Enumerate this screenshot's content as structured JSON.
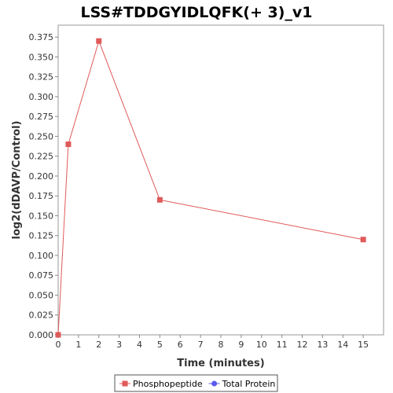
{
  "chart_data": {
    "type": "line",
    "title": "LSS#TDDGYIDLQFK(+ 3)_v1",
    "xlabel": "Time (minutes)",
    "ylabel": "log2(dDAVP/Control)",
    "xlim": [
      0,
      16
    ],
    "ylim": [
      0,
      0.39
    ],
    "x_ticks": [
      0,
      1,
      2,
      3,
      4,
      5,
      6,
      7,
      8,
      9,
      10,
      11,
      12,
      13,
      14,
      15
    ],
    "y_ticks": [
      0.0,
      0.025,
      0.05,
      0.075,
      0.1,
      0.125,
      0.15,
      0.175,
      0.2,
      0.225,
      0.25,
      0.275,
      0.3,
      0.325,
      0.35,
      0.375
    ],
    "grid": false,
    "legend_position": "bottom",
    "series": [
      {
        "name": "Phosphopeptide",
        "color": "#e05a5a",
        "marker": "square",
        "x": [
          0,
          0.5,
          2,
          5,
          15
        ],
        "values": [
          0.0,
          0.24,
          0.37,
          0.17,
          0.12
        ]
      },
      {
        "name": "Total Protein",
        "color": "#5a5aee",
        "marker": "circle",
        "x": [],
        "values": []
      }
    ]
  }
}
